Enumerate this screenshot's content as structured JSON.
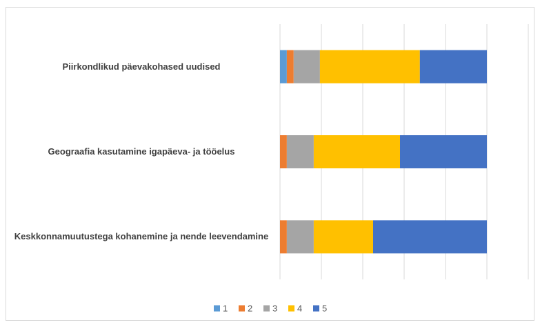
{
  "chart_data": {
    "type": "stacked_barh",
    "categories": [
      "Piirkondlikud päevakohased uudised",
      "Geograafia kasutamine igapäeva- ja tööelus",
      "Keskkonnamuutustega kohanemine ja nende leevendamine"
    ],
    "series": [
      {
        "name": "1",
        "color": "#5b9bd5",
        "values": [
          3.3,
          0,
          0
        ]
      },
      {
        "name": "2",
        "color": "#ed7d31",
        "values": [
          3.3,
          3.3,
          3.3
        ]
      },
      {
        "name": "3",
        "color": "#a5a5a5",
        "values": [
          12.7,
          13,
          13
        ]
      },
      {
        "name": "4",
        "color": "#ffc000",
        "values": [
          48.3,
          41.7,
          28.7
        ]
      },
      {
        "name": "5",
        "color": "#4472c4",
        "values": [
          32.4,
          42,
          55
        ]
      }
    ],
    "xlim": [
      0,
      120
    ],
    "xticks": [
      0,
      20,
      40,
      60,
      80,
      100,
      120
    ],
    "grid": true,
    "legend": "bottom"
  }
}
